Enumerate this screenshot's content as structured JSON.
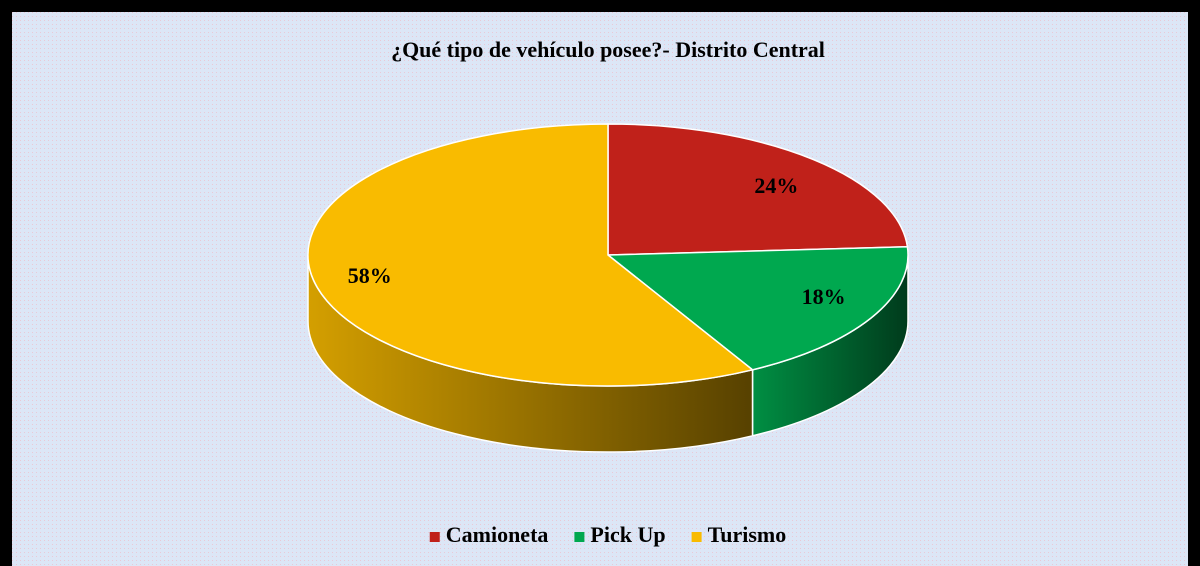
{
  "chart_data": {
    "type": "pie3d",
    "title": "¿Qué tipo de vehículo posee?- Distrito Central",
    "categories": [
      "Camioneta",
      "Pick Up",
      "Turismo"
    ],
    "values": [
      24,
      18,
      58
    ],
    "value_labels": [
      "24%",
      "18%",
      "58%"
    ],
    "colors": [
      "#c0211a",
      "#00a84f",
      "#f9bb00"
    ],
    "legend": "bottom"
  }
}
